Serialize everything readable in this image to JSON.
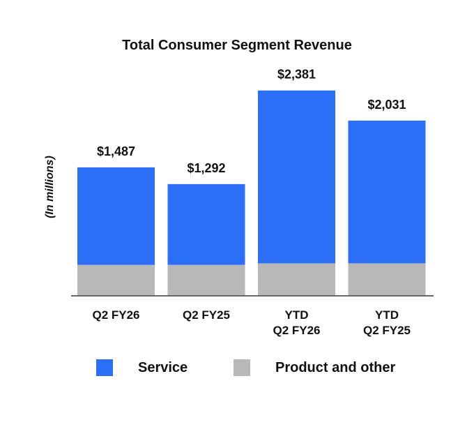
{
  "chart_data": {
    "type": "bar",
    "stacked": true,
    "title": "Total Consumer Segment Revenue",
    "ylabel": "(In millions)",
    "categories": [
      [
        "Q2 FY26"
      ],
      [
        "Q2 FY25"
      ],
      [
        "YTD",
        "Q2 FY26"
      ],
      [
        "YTD",
        "Q2 FY25"
      ]
    ],
    "totals": [
      1487,
      1292,
      2381,
      2031
    ],
    "total_labels": [
      "$1,487",
      "$1,292",
      "$2,381",
      "$2,031"
    ],
    "series": [
      {
        "name": "Service",
        "values": [
          1135,
          940,
          2011,
          1661
        ],
        "color": "#2a6ff6"
      },
      {
        "name": "Product and other",
        "values": [
          352,
          352,
          370,
          370
        ],
        "color": "#b8b8b8"
      }
    ],
    "ylim": [
      0,
      2460
    ],
    "grid": false,
    "legend": "bottom"
  }
}
